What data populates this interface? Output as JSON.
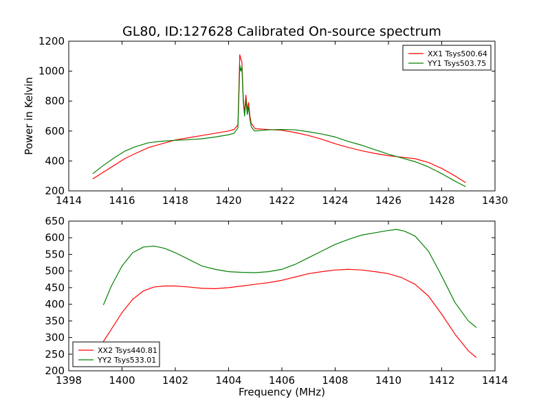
{
  "title": "GL80, ID:127628 Calibrated On-source spectrum",
  "chart_data": [
    {
      "type": "line",
      "xlabel": "",
      "ylabel": "Power in Kelvin",
      "xlim": [
        1414,
        1430
      ],
      "ylim": [
        200,
        1200
      ],
      "xticks": [
        1414,
        1416,
        1418,
        1420,
        1422,
        1424,
        1426,
        1428,
        1430
      ],
      "yticks": [
        200,
        400,
        600,
        800,
        1000,
        1200
      ],
      "legend_position": "top-right",
      "grid": false,
      "series": [
        {
          "name": "XX1 Tsys500.64",
          "color": "#ff0000",
          "x": [
            1414.9,
            1415.3,
            1415.7,
            1416.1,
            1416.5,
            1417.0,
            1417.5,
            1418.0,
            1418.5,
            1419.0,
            1419.5,
            1420.0,
            1420.2,
            1420.35,
            1420.42,
            1420.46,
            1420.5,
            1420.55,
            1420.6,
            1420.65,
            1420.7,
            1420.75,
            1420.8,
            1420.85,
            1420.9,
            1420.95,
            1421.0,
            1421.5,
            1422.0,
            1422.5,
            1423.0,
            1423.5,
            1424.0,
            1424.5,
            1425.0,
            1425.5,
            1426.0,
            1426.5,
            1427.0,
            1427.5,
            1428.0,
            1428.5,
            1428.9
          ],
          "y": [
            280,
            325,
            370,
            415,
            450,
            490,
            515,
            540,
            555,
            570,
            585,
            600,
            610,
            640,
            1110,
            1080,
            1060,
            820,
            720,
            840,
            740,
            790,
            700,
            650,
            640,
            625,
            615,
            610,
            605,
            590,
            570,
            545,
            515,
            490,
            468,
            450,
            435,
            425,
            415,
            390,
            350,
            300,
            255
          ]
        },
        {
          "name": "YY1 Tsys503.75",
          "color": "#008000",
          "x": [
            1414.9,
            1415.3,
            1415.7,
            1416.1,
            1416.5,
            1417.0,
            1417.5,
            1418.0,
            1418.5,
            1419.0,
            1419.5,
            1420.0,
            1420.2,
            1420.35,
            1420.42,
            1420.46,
            1420.5,
            1420.55,
            1420.6,
            1420.65,
            1420.7,
            1420.75,
            1420.8,
            1420.85,
            1420.9,
            1420.95,
            1421.0,
            1421.5,
            1422.0,
            1422.5,
            1423.0,
            1423.5,
            1424.0,
            1424.5,
            1425.0,
            1425.5,
            1426.0,
            1426.5,
            1427.0,
            1427.5,
            1428.0,
            1428.5,
            1428.9
          ],
          "y": [
            315,
            370,
            420,
            465,
            495,
            522,
            532,
            538,
            542,
            548,
            560,
            575,
            585,
            620,
            1040,
            1000,
            1030,
            800,
            700,
            810,
            710,
            760,
            680,
            630,
            615,
            605,
            600,
            608,
            610,
            608,
            595,
            580,
            560,
            530,
            505,
            475,
            445,
            420,
            395,
            360,
            315,
            265,
            228
          ]
        }
      ]
    },
    {
      "type": "line",
      "xlabel": "Frequency (MHz)",
      "ylabel": "",
      "xlim": [
        1398,
        1414
      ],
      "ylim": [
        200,
        650
      ],
      "xticks": [
        1398,
        1400,
        1402,
        1404,
        1406,
        1408,
        1410,
        1412,
        1414
      ],
      "yticks": [
        200,
        250,
        300,
        350,
        400,
        450,
        500,
        550,
        600,
        650
      ],
      "legend_position": "bottom-left",
      "grid": false,
      "series": [
        {
          "name": "XX2 Tsys440.81",
          "color": "#ff0000",
          "x": [
            1399.3,
            1399.6,
            1400.0,
            1400.4,
            1400.8,
            1401.2,
            1401.6,
            1402.0,
            1402.5,
            1403.0,
            1403.5,
            1404.0,
            1404.5,
            1405.0,
            1405.5,
            1406.0,
            1406.5,
            1407.0,
            1407.5,
            1408.0,
            1408.5,
            1409.0,
            1409.5,
            1410.0,
            1410.5,
            1411.0,
            1411.5,
            1412.0,
            1412.5,
            1413.0,
            1413.3
          ],
          "y": [
            288,
            325,
            375,
            415,
            440,
            452,
            455,
            455,
            452,
            448,
            447,
            450,
            455,
            460,
            465,
            472,
            482,
            492,
            498,
            503,
            505,
            503,
            498,
            492,
            480,
            460,
            425,
            370,
            310,
            260,
            240
          ]
        },
        {
          "name": "YY2 Tsys533.01",
          "color": "#008000",
          "x": [
            1399.3,
            1399.6,
            1400.0,
            1400.4,
            1400.8,
            1401.2,
            1401.6,
            1402.0,
            1402.5,
            1403.0,
            1403.5,
            1404.0,
            1404.5,
            1405.0,
            1405.5,
            1406.0,
            1406.5,
            1407.0,
            1407.5,
            1408.0,
            1408.5,
            1409.0,
            1409.5,
            1410.0,
            1410.3,
            1410.6,
            1411.0,
            1411.5,
            1412.0,
            1412.5,
            1413.0,
            1413.3
          ],
          "y": [
            398,
            455,
            515,
            555,
            572,
            575,
            568,
            555,
            535,
            515,
            505,
            498,
            496,
            495,
            498,
            505,
            520,
            540,
            560,
            580,
            595,
            608,
            615,
            622,
            625,
            620,
            605,
            560,
            485,
            405,
            350,
            330
          ]
        }
      ]
    }
  ]
}
